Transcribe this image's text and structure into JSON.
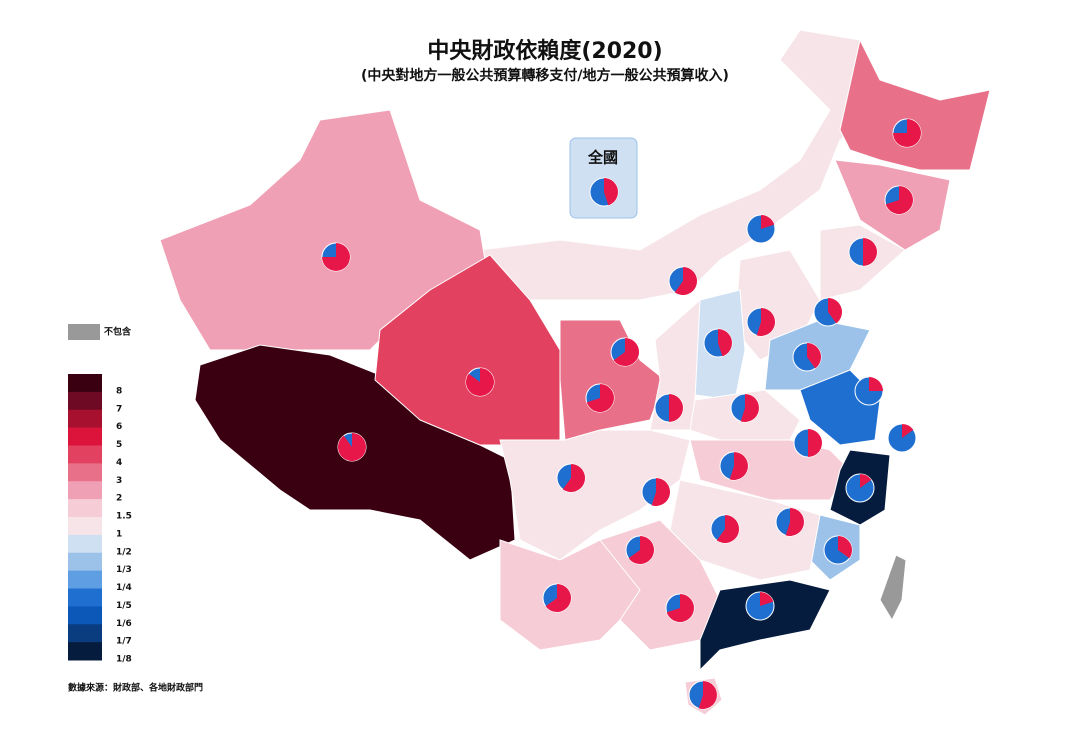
{
  "header": {
    "title": "中央財政依賴度(2020)",
    "subtitle": "(中央對地方一般公共預算轉移支付/地方一般公共預算收入)"
  },
  "national_label": "全國",
  "legend": {
    "excluded_label": "不包含",
    "excluded_color": "#999999",
    "levels": [
      {
        "label": "8",
        "color": "#3a0012"
      },
      {
        "label": "7",
        "color": "#6e0a24"
      },
      {
        "label": "6",
        "color": "#a8102f"
      },
      {
        "label": "5",
        "color": "#dc143c"
      },
      {
        "label": "4",
        "color": "#e2415f"
      },
      {
        "label": "3",
        "color": "#e87088"
      },
      {
        "label": "2",
        "color": "#f0a0b4"
      },
      {
        "label": "1.5",
        "color": "#f6cdd6"
      },
      {
        "label": "1",
        "color": "#f7e4e8"
      },
      {
        "label": "1/2",
        "color": "#cfe0f3"
      },
      {
        "label": "1/3",
        "color": "#9cc2ea"
      },
      {
        "label": "1/4",
        "color": "#5f9ee3"
      },
      {
        "label": "1/5",
        "color": "#1f6fd1"
      },
      {
        "label": "1/6",
        "color": "#0b58b8"
      },
      {
        "label": "1/7",
        "color": "#0a3c80"
      },
      {
        "label": "1/8",
        "color": "#061c3e"
      }
    ]
  },
  "pies": {
    "colors": [
      "#e8174a",
      "#1f6fd1"
    ],
    "values": [
      75,
      90,
      85,
      70,
      65,
      60,
      75,
      70,
      50,
      20,
      40,
      55,
      45,
      40,
      55,
      50,
      25,
      15,
      50,
      55,
      60,
      55,
      15,
      60,
      55,
      65,
      65,
      70,
      35,
      20,
      55,
      45
    ]
  },
  "source": "數據來源：財政部、各地財政部門"
}
